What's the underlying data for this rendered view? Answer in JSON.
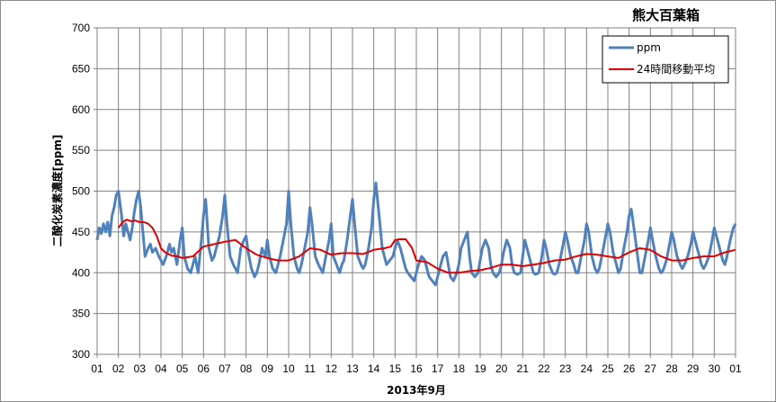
{
  "chart_data": {
    "type": "line",
    "title": "熊大百葉箱",
    "xlabel": "2013年9月",
    "ylabel": "二酸化炭素濃度[ppm]",
    "ylim": [
      300,
      700
    ],
    "yticks": [
      300,
      350,
      400,
      450,
      500,
      550,
      600,
      650,
      700
    ],
    "xlim": [
      0,
      30
    ],
    "xtick_labels": [
      "01",
      "02",
      "03",
      "04",
      "05",
      "06",
      "07",
      "08",
      "09",
      "10",
      "11",
      "12",
      "13",
      "14",
      "15",
      "16",
      "17",
      "18",
      "19",
      "20",
      "21",
      "22",
      "23",
      "24",
      "25",
      "26",
      "27",
      "28",
      "29",
      "30",
      "01"
    ],
    "grid": true,
    "legend_position": "top-right",
    "colors": {
      "ppm": "#4f81bd",
      "moving_avg": "#e00000",
      "grid": "#808080"
    },
    "series": [
      {
        "name": "ppm",
        "x": [
          0,
          0.1,
          0.2,
          0.3,
          0.4,
          0.5,
          0.6,
          0.7,
          0.8,
          0.9,
          1.0,
          1.15,
          1.25,
          1.35,
          1.45,
          1.55,
          1.65,
          1.75,
          1.85,
          1.95,
          2.05,
          2.15,
          2.25,
          2.4,
          2.5,
          2.6,
          2.75,
          2.9,
          3.0,
          3.1,
          3.25,
          3.4,
          3.5,
          3.6,
          3.75,
          3.9,
          4.0,
          4.1,
          4.25,
          4.4,
          4.5,
          4.6,
          4.75,
          4.9,
          5.0,
          5.1,
          5.25,
          5.4,
          5.5,
          5.6,
          5.75,
          5.9,
          6.0,
          6.1,
          6.25,
          6.4,
          6.5,
          6.6,
          6.75,
          6.9,
          7.0,
          7.1,
          7.25,
          7.4,
          7.5,
          7.6,
          7.75,
          7.9,
          8.0,
          8.1,
          8.25,
          8.4,
          8.5,
          8.6,
          8.75,
          8.9,
          9.0,
          9.1,
          9.25,
          9.4,
          9.5,
          9.6,
          9.75,
          9.9,
          10.0,
          10.1,
          10.25,
          10.4,
          10.5,
          10.6,
          10.75,
          10.9,
          11.0,
          11.1,
          11.25,
          11.4,
          11.5,
          11.6,
          11.75,
          11.9,
          12.0,
          12.1,
          12.25,
          12.4,
          12.5,
          12.6,
          12.75,
          12.9,
          13.0,
          13.1,
          13.25,
          13.4,
          13.5,
          13.6,
          13.75,
          13.9,
          14.0,
          14.1,
          14.25,
          14.4,
          14.5,
          14.6,
          14.75,
          14.9,
          15.0,
          15.1,
          15.25,
          15.4,
          15.5,
          15.6,
          15.75,
          15.9,
          16.0,
          16.1,
          16.25,
          16.4,
          16.5,
          16.6,
          16.75,
          16.9,
          17.0,
          17.1,
          17.25,
          17.4,
          17.5,
          17.6,
          17.75,
          17.9,
          18.0,
          18.1,
          18.25,
          18.4,
          18.5,
          18.6,
          18.75,
          18.9,
          19.0,
          19.1,
          19.25,
          19.4,
          19.5,
          19.6,
          19.75,
          19.9,
          20.0,
          20.1,
          20.25,
          20.4,
          20.5,
          20.6,
          20.75,
          20.9,
          21.0,
          21.1,
          21.25,
          21.4,
          21.5,
          21.6,
          21.75,
          21.9,
          22.0,
          22.1,
          22.25,
          22.4,
          22.5,
          22.6,
          22.75,
          22.9,
          23.0,
          23.1,
          23.25,
          23.4,
          23.5,
          23.6,
          23.75,
          23.9,
          24.0,
          24.1,
          24.25,
          24.4,
          24.5,
          24.6,
          24.75,
          24.9,
          25.0,
          25.1,
          25.25,
          25.4,
          25.5,
          25.6,
          25.75,
          25.9,
          26.0,
          26.1,
          26.25,
          26.4,
          26.5,
          26.6,
          26.75,
          26.9,
          27.0,
          27.1,
          27.25,
          27.4,
          27.5,
          27.6,
          27.75,
          27.9,
          28.0,
          28.1,
          28.25,
          28.4,
          28.5,
          28.6,
          28.75,
          28.9,
          29.0,
          29.1,
          29.25,
          29.4,
          29.5,
          29.6,
          29.75,
          29.9,
          30.0
        ],
        "values": [
          440,
          455,
          448,
          460,
          450,
          462,
          445,
          470,
          480,
          495,
          500,
          470,
          445,
          460,
          450,
          440,
          455,
          475,
          490,
          500,
          480,
          450,
          420,
          430,
          435,
          425,
          430,
          420,
          415,
          410,
          420,
          435,
          425,
          430,
          410,
          440,
          455,
          420,
          405,
          400,
          410,
          420,
          400,
          440,
          470,
          490,
          430,
          415,
          420,
          430,
          445,
          470,
          495,
          460,
          420,
          410,
          405,
          400,
          430,
          440,
          445,
          425,
          405,
          395,
          400,
          410,
          430,
          420,
          440,
          420,
          405,
          400,
          410,
          420,
          440,
          460,
          500,
          460,
          420,
          405,
          400,
          410,
          430,
          450,
          480,
          460,
          420,
          410,
          405,
          400,
          420,
          440,
          460,
          420,
          410,
          400,
          410,
          415,
          440,
          470,
          490,
          460,
          420,
          410,
          405,
          410,
          430,
          455,
          490,
          510,
          470,
          430,
          420,
          410,
          415,
          420,
          430,
          440,
          430,
          415,
          405,
          400,
          395,
          390,
          400,
          410,
          420,
          415,
          405,
          395,
          390,
          385,
          395,
          405,
          420,
          425,
          410,
          395,
          390,
          400,
          410,
          430,
          440,
          450,
          420,
          400,
          395,
          400,
          415,
          430,
          440,
          430,
          410,
          400,
          395,
          400,
          410,
          425,
          440,
          430,
          410,
          400,
          398,
          400,
          420,
          440,
          425,
          410,
          400,
          398,
          400,
          420,
          440,
          430,
          410,
          400,
          398,
          400,
          415,
          435,
          450,
          440,
          420,
          410,
          400,
          400,
          420,
          440,
          460,
          450,
          420,
          405,
          400,
          405,
          425,
          445,
          460,
          450,
          425,
          410,
          400,
          405,
          430,
          450,
          470,
          478,
          450,
          420,
          400,
          400,
          420,
          440,
          455,
          440,
          420,
          405,
          400,
          403,
          415,
          435,
          450,
          440,
          420,
          410,
          405,
          410,
          420,
          435,
          450,
          440,
          425,
          410,
          405,
          410,
          420,
          440,
          455,
          445,
          430,
          415,
          410,
          420,
          440,
          455,
          460
        ]
      },
      {
        "name": "24時間移動平均",
        "x": [
          1.0,
          1.2,
          1.4,
          1.6,
          1.8,
          2.0,
          2.2,
          2.4,
          2.6,
          2.8,
          3.0,
          3.2,
          3.5,
          3.8,
          4.0,
          4.5,
          5.0,
          5.5,
          6.0,
          6.5,
          7.0,
          7.5,
          8.0,
          8.5,
          9.0,
          9.5,
          10.0,
          10.5,
          11.0,
          11.5,
          12.0,
          12.5,
          13.0,
          13.5,
          13.8,
          14.0,
          14.2,
          14.5,
          14.8,
          15.0,
          15.5,
          16.0,
          16.5,
          17.0,
          17.5,
          18.0,
          18.5,
          19.0,
          19.5,
          20.0,
          20.5,
          21.0,
          21.5,
          22.0,
          22.5,
          23.0,
          23.5,
          24.0,
          24.5,
          25.0,
          25.5,
          26.0,
          26.5,
          27.0,
          27.5,
          28.0,
          28.5,
          29.0,
          29.5,
          30.0
        ],
        "values": [
          455,
          462,
          465,
          463,
          464,
          462,
          462,
          460,
          455,
          445,
          430,
          425,
          421,
          420,
          418,
          420,
          432,
          435,
          438,
          440,
          430,
          422,
          418,
          415,
          415,
          420,
          430,
          428,
          422,
          424,
          424,
          423,
          428,
          430,
          432,
          440,
          441,
          441,
          430,
          415,
          413,
          405,
          400,
          400,
          402,
          403,
          406,
          410,
          410,
          408,
          410,
          412,
          415,
          416,
          420,
          423,
          422,
          420,
          418,
          425,
          430,
          428,
          420,
          415,
          415,
          418,
          420,
          420,
          425,
          428
        ]
      }
    ]
  }
}
